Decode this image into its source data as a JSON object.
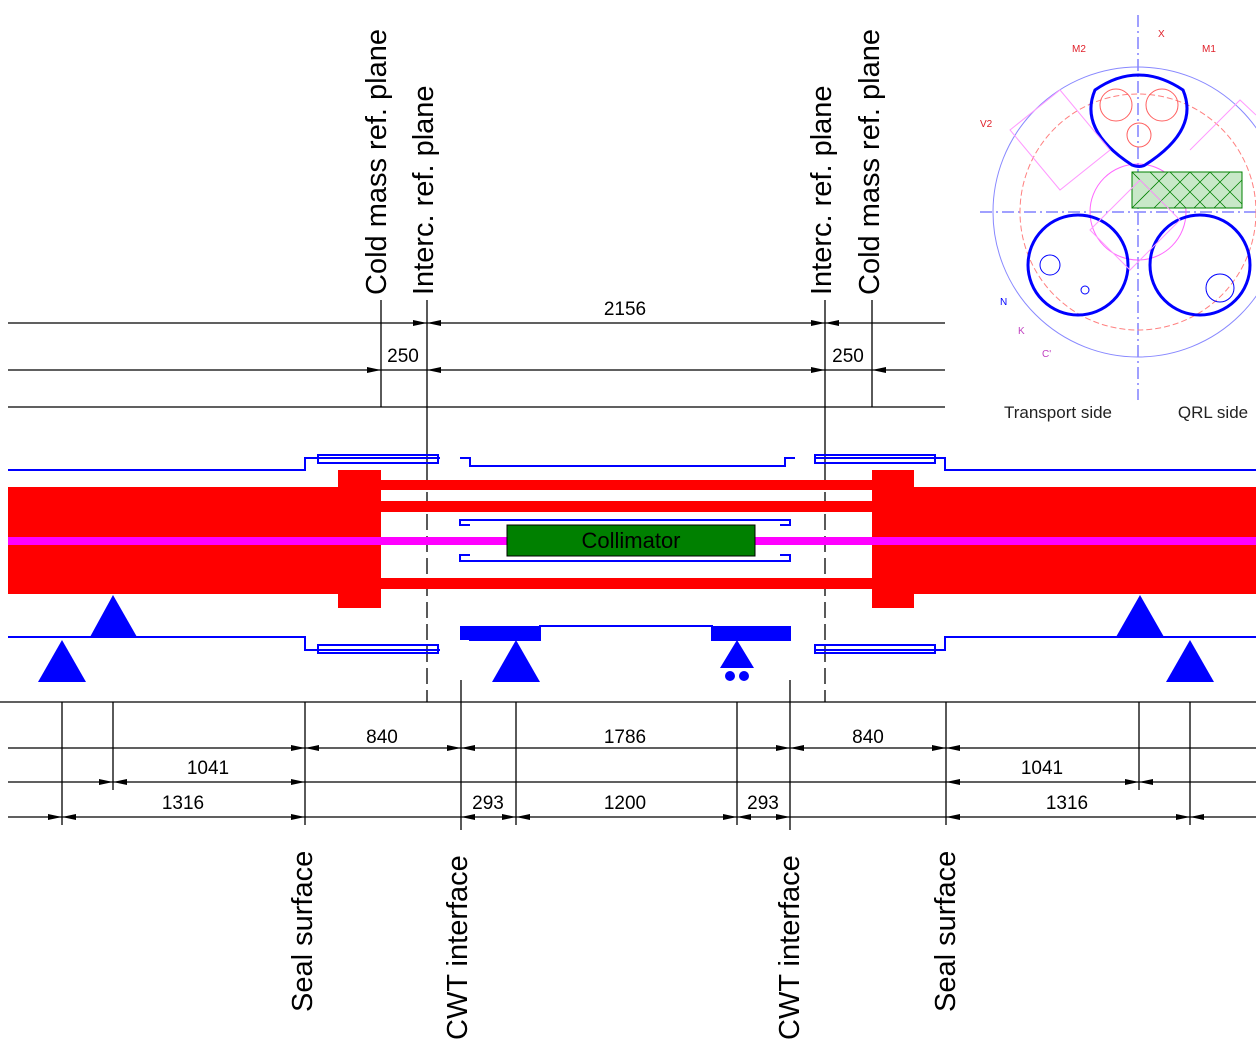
{
  "planes_top": [
    "Cold mass ref. plane",
    "Interc. ref. plane",
    "Interc. ref. plane",
    "Cold mass ref. plane"
  ],
  "top_dimensions": [
    2156,
    250,
    250
  ],
  "collimator": "Collimator",
  "bottom_dimensions": [
    840,
    1786,
    840,
    1041,
    1041,
    1316,
    1316,
    293,
    1200,
    293
  ],
  "planes_bottom": [
    "Seal surface",
    "CWT interface",
    "CWT interface",
    "Seal surface"
  ],
  "cross_section": {
    "labels": [
      "M2",
      "X",
      "M1",
      "V2",
      "N",
      "K",
      "C'"
    ],
    "sides": [
      "Transport side",
      "QRL side"
    ]
  }
}
